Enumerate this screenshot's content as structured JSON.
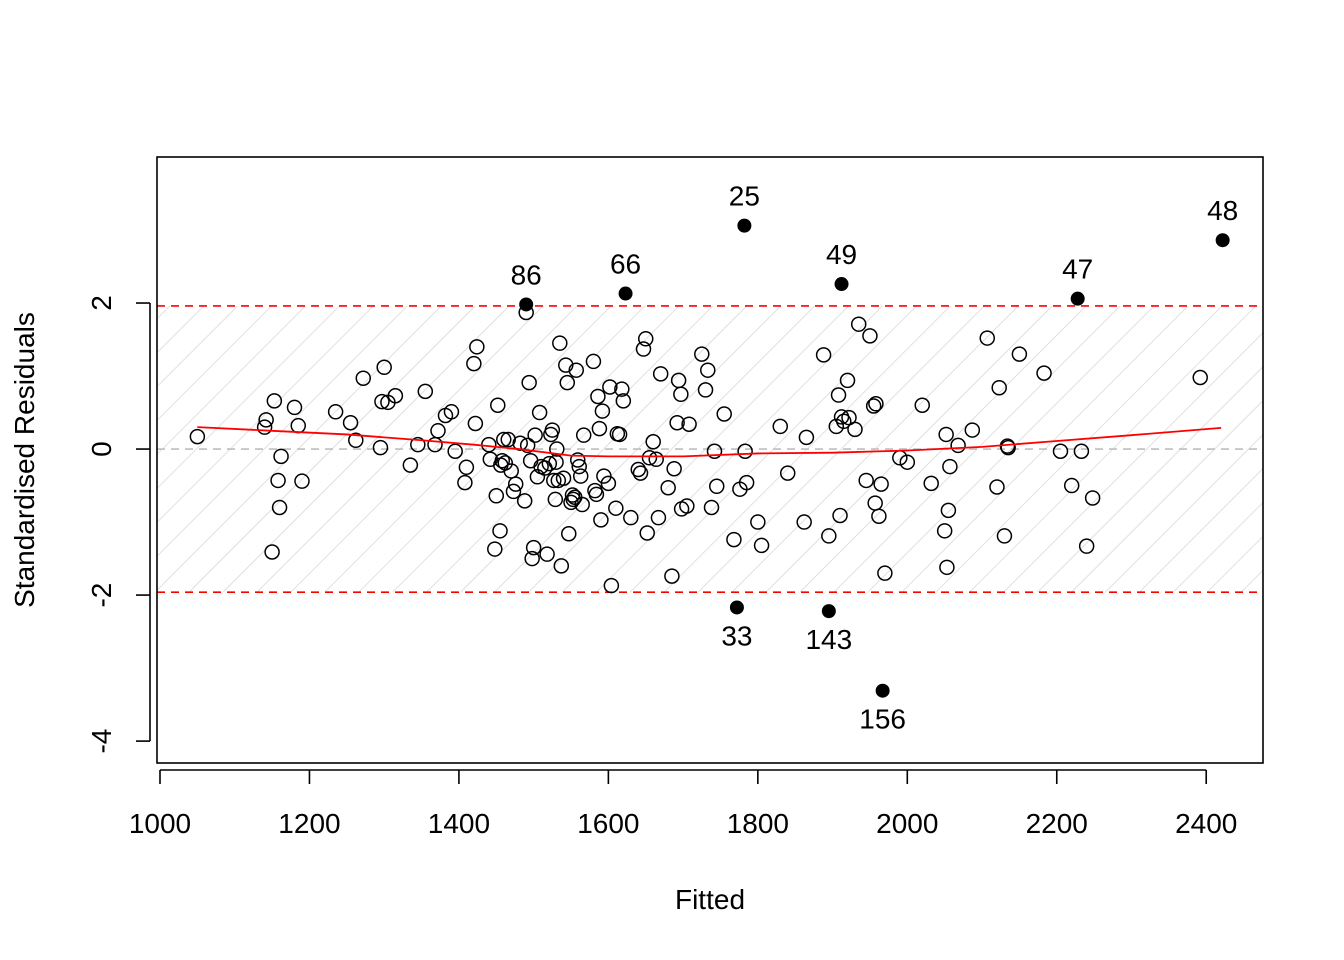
{
  "chart_data": {
    "type": "scatter",
    "title": "",
    "xlabel": "Fitted",
    "ylabel": "Standardised Residuals",
    "xlim": [
      1000,
      2480
    ],
    "ylim": [
      -4.3,
      4.0
    ],
    "x_ticks": [
      1000,
      1200,
      1400,
      1600,
      1800,
      2000,
      2200,
      2400
    ],
    "y_ticks": [
      -4,
      -2,
      0,
      2
    ],
    "x_tick_labels": [
      "1000",
      "1200",
      "1400",
      "1600",
      "1800",
      "2000",
      "2200",
      "2400"
    ],
    "y_tick_labels": [
      "-4",
      "-2",
      "0",
      "2"
    ],
    "bounds": [
      -1.96,
      1.96
    ],
    "colors": {
      "points": "#000000",
      "smooth": "#ff0000",
      "bounds": "#ff0000",
      "zero_line": "#bebebe",
      "hatch": "#d3d3d3"
    },
    "points": [
      [
        1050,
        0.17
      ],
      [
        1140,
        0.3
      ],
      [
        1142,
        0.4
      ],
      [
        1150,
        -1.41
      ],
      [
        1153,
        0.66
      ],
      [
        1158,
        -0.43
      ],
      [
        1160,
        -0.8
      ],
      [
        1162,
        -0.1
      ],
      [
        1180,
        0.57
      ],
      [
        1185,
        0.32
      ],
      [
        1190,
        -0.44
      ],
      [
        1235,
        0.51
      ],
      [
        1255,
        0.36
      ],
      [
        1262,
        0.12
      ],
      [
        1272,
        0.97
      ],
      [
        1295,
        0.02
      ],
      [
        1297,
        0.65
      ],
      [
        1300,
        1.12
      ],
      [
        1305,
        0.64
      ],
      [
        1315,
        0.73
      ],
      [
        1335,
        -0.22
      ],
      [
        1345,
        0.06
      ],
      [
        1355,
        0.79
      ],
      [
        1368,
        0.06
      ],
      [
        1372,
        0.25
      ],
      [
        1382,
        0.46
      ],
      [
        1390,
        0.51
      ],
      [
        1395,
        -0.03
      ],
      [
        1408,
        -0.46
      ],
      [
        1410,
        -0.25
      ],
      [
        1420,
        1.17
      ],
      [
        1422,
        0.35
      ],
      [
        1424,
        1.4
      ],
      [
        1440,
        0.06
      ],
      [
        1442,
        -0.14
      ],
      [
        1448,
        -1.37
      ],
      [
        1450,
        -0.64
      ],
      [
        1452,
        0.6
      ],
      [
        1455,
        -1.12
      ],
      [
        1456,
        -0.22
      ],
      [
        1458,
        -0.16
      ],
      [
        1460,
        0.13
      ],
      [
        1462,
        -0.19
      ],
      [
        1466,
        0.13
      ],
      [
        1470,
        -0.3
      ],
      [
        1473,
        -0.58
      ],
      [
        1476,
        -0.48
      ],
      [
        1482,
        0.08
      ],
      [
        1488,
        -0.71
      ],
      [
        1490,
        1.87
      ],
      [
        1492,
        0.05
      ],
      [
        1494,
        0.91
      ],
      [
        1496,
        -0.16
      ],
      [
        1498,
        -1.5
      ],
      [
        1500,
        -1.35
      ],
      [
        1502,
        0.19
      ],
      [
        1505,
        -0.38
      ],
      [
        1508,
        0.5
      ],
      [
        1510,
        -0.24
      ],
      [
        1515,
        -0.26
      ],
      [
        1518,
        -1.44
      ],
      [
        1521,
        -0.2
      ],
      [
        1523,
        0.2
      ],
      [
        1525,
        0.26
      ],
      [
        1527,
        -0.43
      ],
      [
        1529,
        -0.69
      ],
      [
        1530,
        -0.18
      ],
      [
        1531,
        0.0
      ],
      [
        1533,
        -0.43
      ],
      [
        1535,
        1.45
      ],
      [
        1537,
        -1.6
      ],
      [
        1540,
        -0.4
      ],
      [
        1543,
        1.15
      ],
      [
        1545,
        0.91
      ],
      [
        1547,
        -1.16
      ],
      [
        1550,
        -0.73
      ],
      [
        1552,
        -0.63
      ],
      [
        1553,
        -0.69
      ],
      [
        1555,
        -0.66
      ],
      [
        1557,
        1.08
      ],
      [
        1559,
        -0.15
      ],
      [
        1561,
        -0.24
      ],
      [
        1563,
        -0.37
      ],
      [
        1565,
        -0.76
      ],
      [
        1567,
        0.19
      ],
      [
        1580,
        1.2
      ],
      [
        1582,
        -0.57
      ],
      [
        1584,
        -0.62
      ],
      [
        1586,
        0.72
      ],
      [
        1588,
        0.28
      ],
      [
        1590,
        -0.97
      ],
      [
        1592,
        0.52
      ],
      [
        1594,
        -0.37
      ],
      [
        1600,
        -0.47
      ],
      [
        1602,
        0.85
      ],
      [
        1604,
        -1.87
      ],
      [
        1610,
        -0.81
      ],
      [
        1612,
        0.21
      ],
      [
        1615,
        0.2
      ],
      [
        1618,
        0.82
      ],
      [
        1620,
        0.66
      ],
      [
        1630,
        -0.94
      ],
      [
        1640,
        -0.28
      ],
      [
        1643,
        -0.33
      ],
      [
        1647,
        1.37
      ],
      [
        1650,
        1.51
      ],
      [
        1652,
        -1.15
      ],
      [
        1655,
        -0.12
      ],
      [
        1660,
        0.1
      ],
      [
        1664,
        -0.14
      ],
      [
        1667,
        -0.94
      ],
      [
        1670,
        1.03
      ],
      [
        1680,
        -0.53
      ],
      [
        1685,
        -1.74
      ],
      [
        1688,
        -0.27
      ],
      [
        1692,
        0.36
      ],
      [
        1694,
        0.94
      ],
      [
        1697,
        0.75
      ],
      [
        1698,
        -0.82
      ],
      [
        1705,
        -0.78
      ],
      [
        1708,
        0.34
      ],
      [
        1725,
        1.3
      ],
      [
        1730,
        0.81
      ],
      [
        1733,
        1.08
      ],
      [
        1738,
        -0.8
      ],
      [
        1742,
        -0.03
      ],
      [
        1745,
        -0.51
      ],
      [
        1755,
        0.48
      ],
      [
        1768,
        -1.24
      ],
      [
        1776,
        -0.55
      ],
      [
        1783,
        -0.03
      ],
      [
        1785,
        -0.46
      ],
      [
        1800,
        -1.0
      ],
      [
        1805,
        -1.32
      ],
      [
        1830,
        0.31
      ],
      [
        1840,
        -0.33
      ],
      [
        1862,
        -1.0
      ],
      [
        1865,
        0.16
      ],
      [
        1888,
        1.29
      ],
      [
        1895,
        -1.19
      ],
      [
        1905,
        0.31
      ],
      [
        1908,
        0.74
      ],
      [
        1910,
        -0.91
      ],
      [
        1912,
        0.44
      ],
      [
        1915,
        0.38
      ],
      [
        1920,
        0.94
      ],
      [
        1922,
        0.43
      ],
      [
        1930,
        0.27
      ],
      [
        1935,
        1.71
      ],
      [
        1945,
        -0.43
      ],
      [
        1950,
        1.55
      ],
      [
        1955,
        0.59
      ],
      [
        1957,
        -0.74
      ],
      [
        1958,
        0.62
      ],
      [
        1962,
        -0.92
      ],
      [
        1965,
        -0.48
      ],
      [
        1970,
        -1.7
      ],
      [
        1990,
        -0.12
      ],
      [
        2000,
        -0.18
      ],
      [
        2020,
        0.6
      ],
      [
        2032,
        -0.47
      ],
      [
        2050,
        -1.12
      ],
      [
        2052,
        0.2
      ],
      [
        2053,
        -1.62
      ],
      [
        2055,
        -0.84
      ],
      [
        2057,
        -0.24
      ],
      [
        2068,
        0.05
      ],
      [
        2087,
        0.26
      ],
      [
        2107,
        1.52
      ],
      [
        2120,
        -0.52
      ],
      [
        2123,
        0.84
      ],
      [
        2130,
        -1.19
      ],
      [
        2134,
        0.04
      ],
      [
        2135,
        0.02
      ],
      [
        2150,
        1.3
      ],
      [
        2183,
        1.04
      ],
      [
        2205,
        -0.03
      ],
      [
        2220,
        -0.5
      ],
      [
        2233,
        -0.03
      ],
      [
        2240,
        -1.33
      ],
      [
        2248,
        -0.67
      ],
      [
        2392,
        0.98
      ]
    ],
    "outliers": [
      {
        "label": "25",
        "x": 1782,
        "y": 3.06
      },
      {
        "label": "48",
        "x": 2422,
        "y": 2.86
      },
      {
        "label": "49",
        "x": 1912,
        "y": 2.26
      },
      {
        "label": "66",
        "x": 1623,
        "y": 2.13
      },
      {
        "label": "47",
        "x": 2228,
        "y": 2.06
      },
      {
        "label": "86",
        "x": 1490,
        "y": 1.98
      },
      {
        "label": "33",
        "x": 1772,
        "y": -2.17
      },
      {
        "label": "143",
        "x": 1895,
        "y": -2.22
      },
      {
        "label": "156",
        "x": 1967,
        "y": -3.31
      }
    ],
    "smooth": [
      [
        1050,
        0.3
      ],
      [
        1150,
        0.25
      ],
      [
        1250,
        0.2
      ],
      [
        1350,
        0.12
      ],
      [
        1420,
        0.06
      ],
      [
        1480,
        0.0
      ],
      [
        1550,
        -0.09
      ],
      [
        1600,
        -0.1
      ],
      [
        1700,
        -0.1
      ],
      [
        1800,
        -0.06
      ],
      [
        1900,
        -0.05
      ],
      [
        2000,
        -0.02
      ],
      [
        2100,
        0.03
      ],
      [
        2200,
        0.11
      ],
      [
        2300,
        0.19
      ],
      [
        2420,
        0.29
      ]
    ]
  }
}
